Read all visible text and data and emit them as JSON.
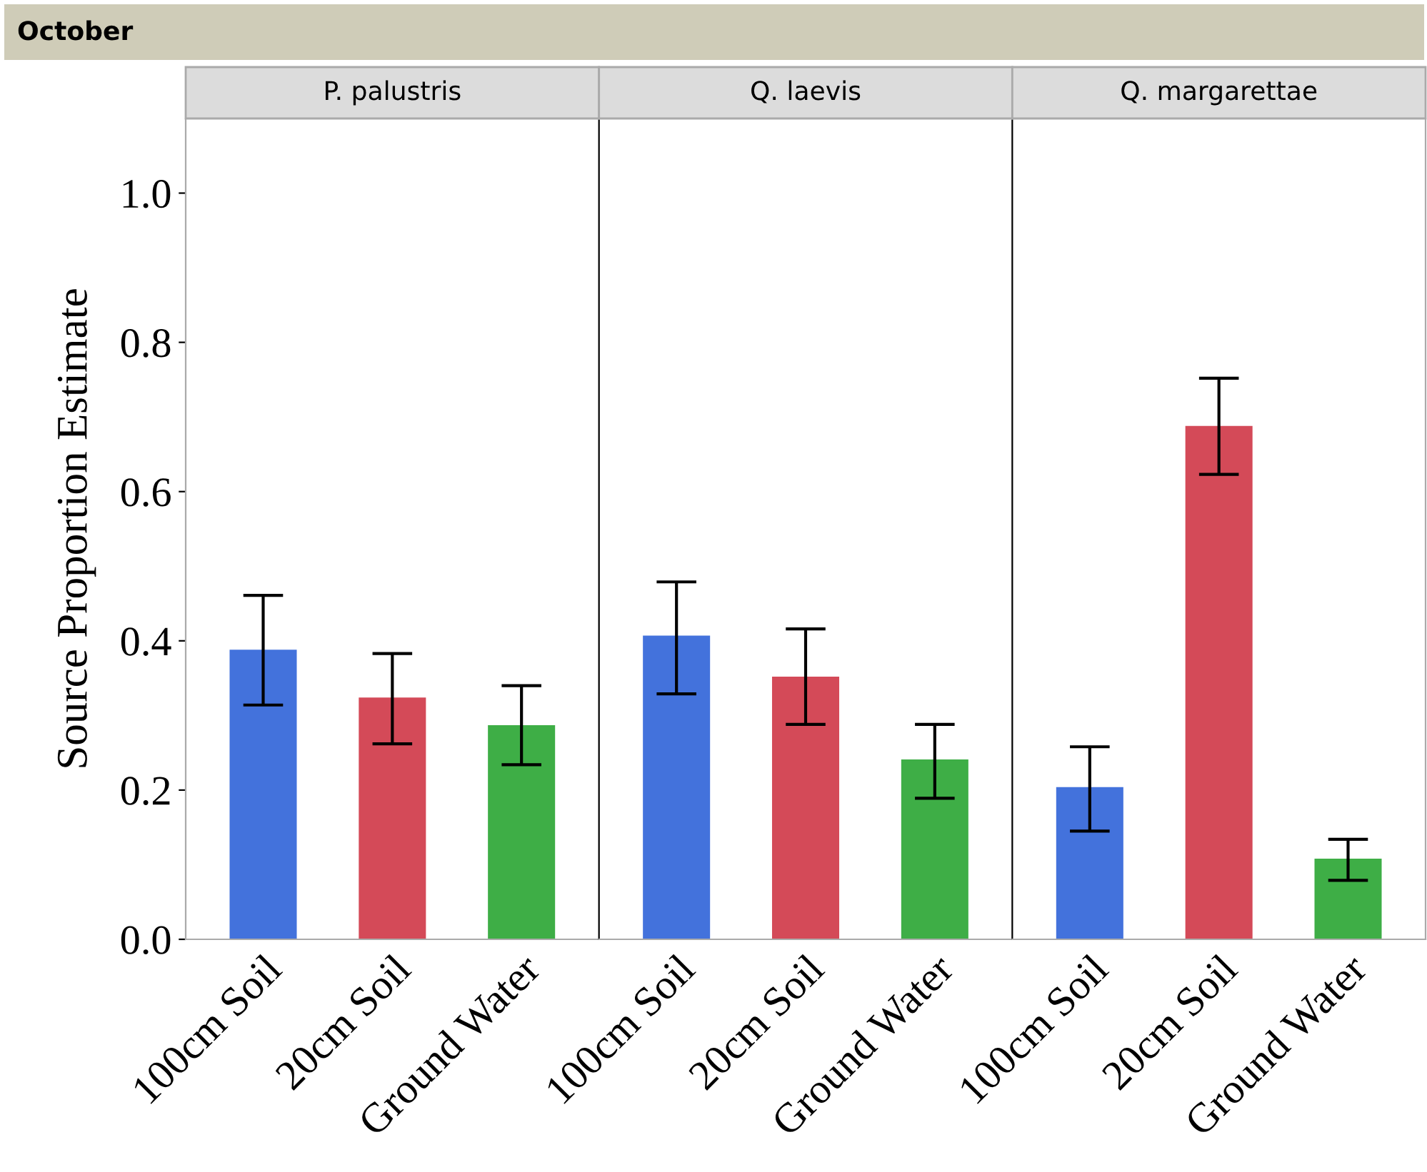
{
  "chart_data": [
    {
      "type": "bar",
      "title": "October",
      "subtitle": "P. palustris",
      "ylabel": "Source Proportion Estimate",
      "categories": [
        "100cm Soil",
        "20cm Soil",
        "Ground Water"
      ],
      "values": [
        0.388,
        0.324,
        0.287
      ],
      "errors": [
        [
          0.314,
          0.461
        ],
        [
          0.262,
          0.383
        ],
        [
          0.234,
          0.34
        ]
      ],
      "colors": [
        "#4372dc",
        "#d44a58",
        "#3eae46"
      ],
      "ylim": [
        0,
        1.1
      ],
      "yticks": [
        {
          "value": 0,
          "label": "0.0"
        },
        0.2,
        0.4,
        0.6,
        0.8,
        {
          "value": 1,
          "label": "1.0"
        }
      ],
      "grid": false,
      "legend": false
    },
    {
      "type": "bar",
      "subtitle": "Q. laevis",
      "categories": [
        "100cm Soil",
        "20cm Soil",
        "Ground Water"
      ],
      "values": [
        0.407,
        0.352,
        0.241
      ],
      "errors": [
        [
          0.329,
          0.479
        ],
        [
          0.288,
          0.416
        ],
        [
          0.189,
          0.288
        ]
      ],
      "colors": [
        "#4372dc",
        "#d44a58",
        "#3eae46"
      ],
      "ylim": [
        0,
        1.1
      ],
      "tick_labels": "x",
      "grid": false,
      "legend": false
    },
    {
      "type": "bar",
      "subtitle": "Q. margarettae",
      "categories": [
        "100cm Soil",
        "20cm Soil",
        "Ground Water"
      ],
      "values": [
        0.204,
        0.688,
        0.108
      ],
      "errors": [
        [
          0.145,
          0.258
        ],
        [
          0.623,
          0.752
        ],
        [
          0.079,
          0.134
        ]
      ],
      "colors": [
        "#4372dc",
        "#d44a58",
        "#3eae46"
      ],
      "ylim": [
        0,
        1.1
      ],
      "tick_labels": "x",
      "grid": false,
      "legend": false
    }
  ]
}
